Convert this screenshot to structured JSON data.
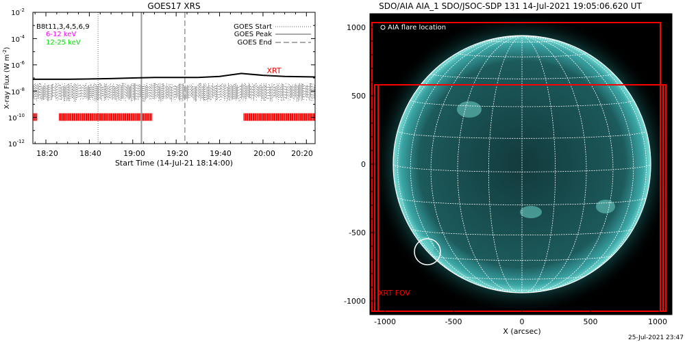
{
  "goes_panel": {
    "title": "GOES17 XRS",
    "ylabel": "X-ray Flux (W m",
    "ylabel_sup": "-2",
    "ylabel_close": ")",
    "xlabel": "Start Time (14-Jul-21 18:14:00)",
    "legend_left": [
      {
        "text": "B8t11,3,4,5,6,9",
        "color": "#000000"
      },
      {
        "text": "6-12 keV",
        "color": "#ff00ff"
      },
      {
        "text": "12-25 keV",
        "color": "#00dd00"
      }
    ],
    "legend_right": [
      {
        "text": "GOES Start",
        "style": "dotted"
      },
      {
        "text": "GOES Peak",
        "style": "solid"
      },
      {
        "text": "GOES End",
        "style": "dashed"
      }
    ],
    "xrt_label": "XRT",
    "y_tick_labels": [
      {
        "base": "10",
        "exp": "-2"
      },
      {
        "base": "10",
        "exp": "-4"
      },
      {
        "base": "10",
        "exp": "-6"
      },
      {
        "base": "10",
        "exp": "-8"
      },
      {
        "base": "10",
        "exp": "-10"
      },
      {
        "base": "10",
        "exp": "-12"
      }
    ],
    "x_tick_labels": [
      "18:20",
      "18:40",
      "19:00",
      "19:20",
      "19:40",
      "20:00",
      "20:20"
    ]
  },
  "aia_panel": {
    "title": "SDO/AIA AIA_1 SDO/JSOC-SDP 131 14-Jul-2021 19:05:06.620 UT",
    "flare_legend": "AIA flare location",
    "fov_label": "XRT FOV",
    "xlabel": "X (arcsec)",
    "x_tick_labels": [
      "-1000",
      "-500",
      "0",
      "500",
      "1000"
    ],
    "y_tick_labels": [
      "1000",
      "500",
      "0",
      "-500",
      "-1000"
    ],
    "disk_color": "#1e7e7e",
    "fov_color": "#ff0000"
  },
  "footer": {
    "timestamp": "25-Jul-2021 23:47"
  },
  "chart_data": [
    {
      "type": "line",
      "title": "GOES17 XRS",
      "xlabel": "Start Time (14-Jul-21 18:14:00)",
      "ylabel": "X-ray Flux (W m-2)",
      "y_scale": "log",
      "ylim": [
        1e-12,
        0.01
      ],
      "xlim": [
        "18:14",
        "20:24"
      ],
      "series": [
        {
          "name": "6-12 keV",
          "x": [
            "18:14",
            "18:30",
            "18:50",
            "19:00",
            "19:10",
            "19:20",
            "19:30",
            "19:40",
            "19:50",
            "20:00",
            "20:10",
            "20:24"
          ],
          "y": [
            8e-08,
            8e-08,
            9e-08,
            1e-07,
            1.1e-07,
            1.1e-07,
            1.1e-07,
            1.3e-07,
            2.2e-07,
            1.6e-07,
            1.3e-07,
            1.2e-07
          ]
        }
      ],
      "markers": {
        "goes_start": "18:44",
        "goes_peak": "19:04",
        "goes_end": "19:24"
      },
      "xrt_coverage": [
        [
          "18:14",
          "18:16"
        ],
        [
          "18:26",
          "19:09"
        ],
        [
          "19:51",
          "20:24"
        ]
      ],
      "xrt_level": 1e-10
    },
    {
      "type": "heatmap",
      "title": "SDO/AIA AIA_1 SDO/JSOC-SDP 131 14-Jul-2021 19:05:06.620 UT",
      "xlabel": "X (arcsec)",
      "ylabel": "",
      "xlim": [
        -1100,
        1100
      ],
      "ylim": [
        -1100,
        1100
      ],
      "grid": "heliographic",
      "flare_location": {
        "x": -680,
        "y": -640
      },
      "xrt_fov": {
        "x": [
          -1050,
          1050
        ],
        "y": [
          -1050,
          590
        ]
      }
    }
  ]
}
